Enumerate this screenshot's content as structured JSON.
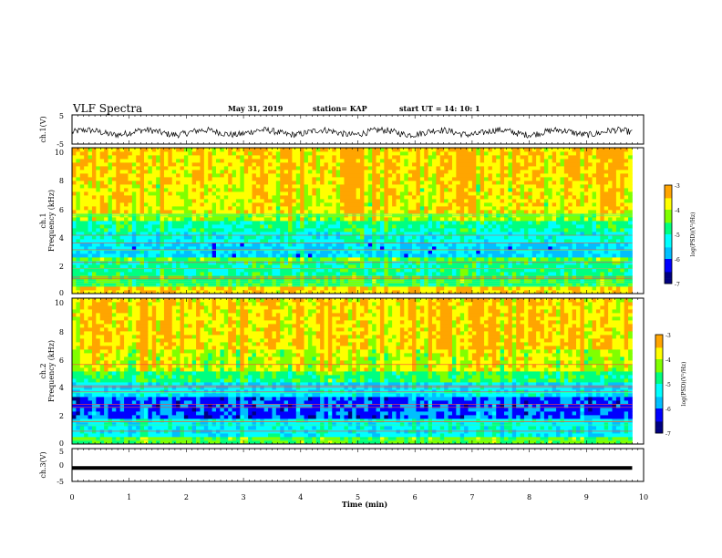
{
  "header": {
    "title": "VLF Spectra",
    "date": "May 31, 2019",
    "station": "station= KAP",
    "start": "start  UT  =   14: 10: 1"
  },
  "colors": {
    "spectrogram_scale": [
      "#000080",
      "#0000ff",
      "#00bfff",
      "#00ffff",
      "#00ff80",
      "#80ff00",
      "#ffff00",
      "#ffa500",
      "#ff0000",
      "#ffffff"
    ]
  },
  "chart_data": [
    {
      "id": "ch1-waveform",
      "type": "line",
      "ylabel": "ch.1(V)",
      "ylim": [
        -5,
        5
      ],
      "yticks": [
        "5",
        "-5"
      ],
      "xlim": [
        0,
        10
      ],
      "series": [
        {
          "x_range": [
            0,
            9.8
          ],
          "baseline": -1.0,
          "amplitude": 1.6
        }
      ]
    },
    {
      "id": "ch1-spectrogram",
      "type": "heatmap",
      "ylabel": "ch.1",
      "ylabel2": "Frequency (kHz)",
      "ylim": [
        0,
        10
      ],
      "yticks": [
        "0",
        "2",
        "4",
        "6",
        "8",
        "10"
      ],
      "xlim": [
        0,
        10
      ],
      "data_x_range": [
        0,
        9.8
      ],
      "colorbar": {
        "label": "log(PSD)(V²/Hz)",
        "range": [
          -7,
          -3
        ],
        "ticks": [
          "-3",
          "-4",
          "-5",
          "-6",
          "-7"
        ]
      },
      "bands": [
        {
          "f": [
            0.0,
            0.4
          ],
          "level": -3.6
        },
        {
          "f": [
            0.4,
            1.2
          ],
          "level": -4.6
        },
        {
          "f": [
            1.2,
            2.2
          ],
          "level": -4.9
        },
        {
          "f": [
            2.2,
            2.6
          ],
          "level": -4.4
        },
        {
          "f": [
            2.6,
            3.6
          ],
          "level": -5.6
        },
        {
          "f": [
            3.6,
            4.2
          ],
          "level": -5.2
        },
        {
          "f": [
            4.2,
            5.0
          ],
          "level": -4.9
        },
        {
          "f": [
            5.0,
            5.6
          ],
          "level": -4.2
        },
        {
          "f": [
            5.6,
            7.5
          ],
          "level": -3.8
        },
        {
          "f": [
            7.5,
            10.0
          ],
          "level": -3.6
        }
      ]
    },
    {
      "id": "ch2-spectrogram",
      "type": "heatmap",
      "ylabel": "ch.2",
      "ylabel2": "Frequency (kHz)",
      "ylim": [
        0,
        10
      ],
      "yticks": [
        "0",
        "2",
        "4",
        "6",
        "8",
        "10"
      ],
      "xlim": [
        0,
        10
      ],
      "data_x_range": [
        0,
        9.8
      ],
      "colorbar": {
        "label": "log(PSD)(V²/Hz)",
        "range": [
          -7,
          -3
        ],
        "ticks": [
          "-3",
          "-4",
          "-5",
          "-6",
          "-7"
        ]
      },
      "bands": [
        {
          "f": [
            0.0,
            0.4
          ],
          "level": -4.4
        },
        {
          "f": [
            0.4,
            1.8
          ],
          "level": -5.3
        },
        {
          "f": [
            1.8,
            3.2
          ],
          "level": -6.1
        },
        {
          "f": [
            3.2,
            4.2
          ],
          "level": -5.4
        },
        {
          "f": [
            4.2,
            5.0
          ],
          "level": -4.7
        },
        {
          "f": [
            5.0,
            6.5
          ],
          "level": -4.0
        },
        {
          "f": [
            6.5,
            10.0
          ],
          "level": -3.6
        }
      ]
    },
    {
      "id": "ch3-waveform",
      "type": "line",
      "ylabel": "ch.3(V)",
      "ylim": [
        -5,
        5
      ],
      "yticks": [
        "5",
        "0",
        "-5"
      ],
      "xlim": [
        0,
        10
      ],
      "xlabel": "Time (min)",
      "xticks": [
        "0",
        "1",
        "2",
        "3",
        "4",
        "5",
        "6",
        "7",
        "8",
        "9",
        "10"
      ],
      "series": [
        {
          "x_range": [
            0,
            9.8
          ],
          "value": -0.9,
          "amplitude": 0
        }
      ]
    }
  ]
}
